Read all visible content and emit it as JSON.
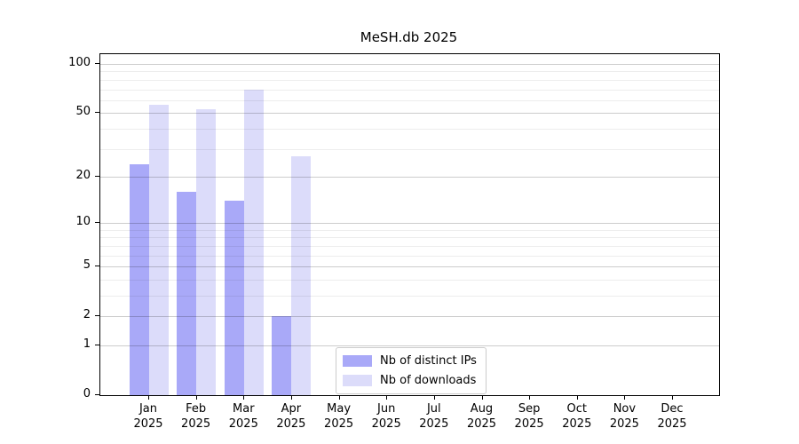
{
  "title": "MeSH.db 2025",
  "chart_data": {
    "type": "bar",
    "title": "MeSH.db 2025",
    "categories": [
      "Jan",
      "Feb",
      "Mar",
      "Apr",
      "May",
      "Jun",
      "Jul",
      "Aug",
      "Sep",
      "Oct",
      "Nov",
      "Dec"
    ],
    "category_year": "2025",
    "series": [
      {
        "name": "Nb of distinct IPs",
        "color": "#a9a9f8",
        "values": [
          24,
          16,
          14,
          2,
          0,
          0,
          0,
          0,
          0,
          0,
          0,
          0
        ]
      },
      {
        "name": "Nb of downloads",
        "color": "#dcdcfa",
        "values": [
          56,
          53,
          70,
          27,
          0,
          0,
          0,
          0,
          0,
          0,
          0,
          0
        ]
      }
    ],
    "y_axis": {
      "scale": "log(value+1)",
      "major_ticks": [
        0,
        1,
        2,
        5,
        10,
        20,
        50,
        100
      ],
      "minor_ticks": [
        3,
        4,
        6,
        7,
        8,
        9,
        30,
        40,
        60,
        70,
        80,
        90
      ],
      "range_min": 0,
      "range_max": 112
    },
    "grid": "horizontal",
    "legend_position": "inside-bottom-center"
  }
}
